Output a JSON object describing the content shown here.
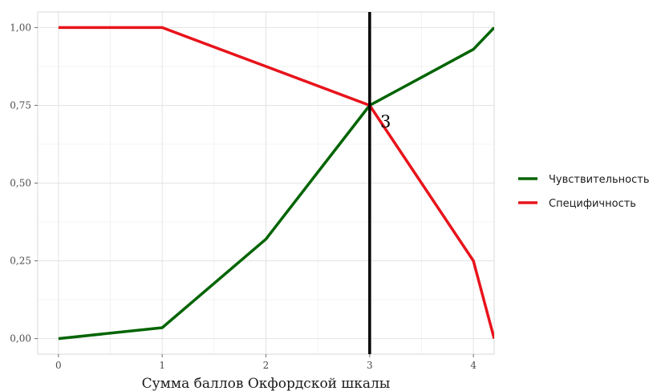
{
  "chart_data": {
    "type": "line",
    "title": "",
    "xlabel": "Сумма баллов Окфордской шкалы",
    "ylabel": "",
    "xlim": [
      -0.2,
      4.2
    ],
    "ylim": [
      -0.05,
      1.05
    ],
    "x_ticks": [
      0,
      1,
      2,
      3,
      4
    ],
    "x_tick_labels": [
      "0",
      "1",
      "2",
      "3",
      "4"
    ],
    "y_ticks": [
      0,
      0.25,
      0.5,
      0.75,
      1.0
    ],
    "y_tick_labels": [
      "0,00",
      "0,25",
      "0,50",
      "0,75",
      "1,00"
    ],
    "grid": true,
    "legend_position": "right",
    "series": [
      {
        "name": "Чувствительность",
        "color": "#006400",
        "x": [
          0,
          1,
          2,
          3,
          4,
          4.2
        ],
        "y": [
          0.0,
          0.035,
          0.32,
          0.75,
          0.93,
          1.0
        ]
      },
      {
        "name": "Специфичность",
        "color": "#e8131b",
        "x": [
          0,
          1,
          2,
          3,
          4,
          4.2
        ],
        "y": [
          1.0,
          1.0,
          0.875,
          0.75,
          0.25,
          0.0
        ]
      }
    ],
    "vline": {
      "x": 3,
      "color": "#000000"
    },
    "annotation": {
      "text": "3",
      "x": 3.2,
      "y": 0.7
    }
  }
}
